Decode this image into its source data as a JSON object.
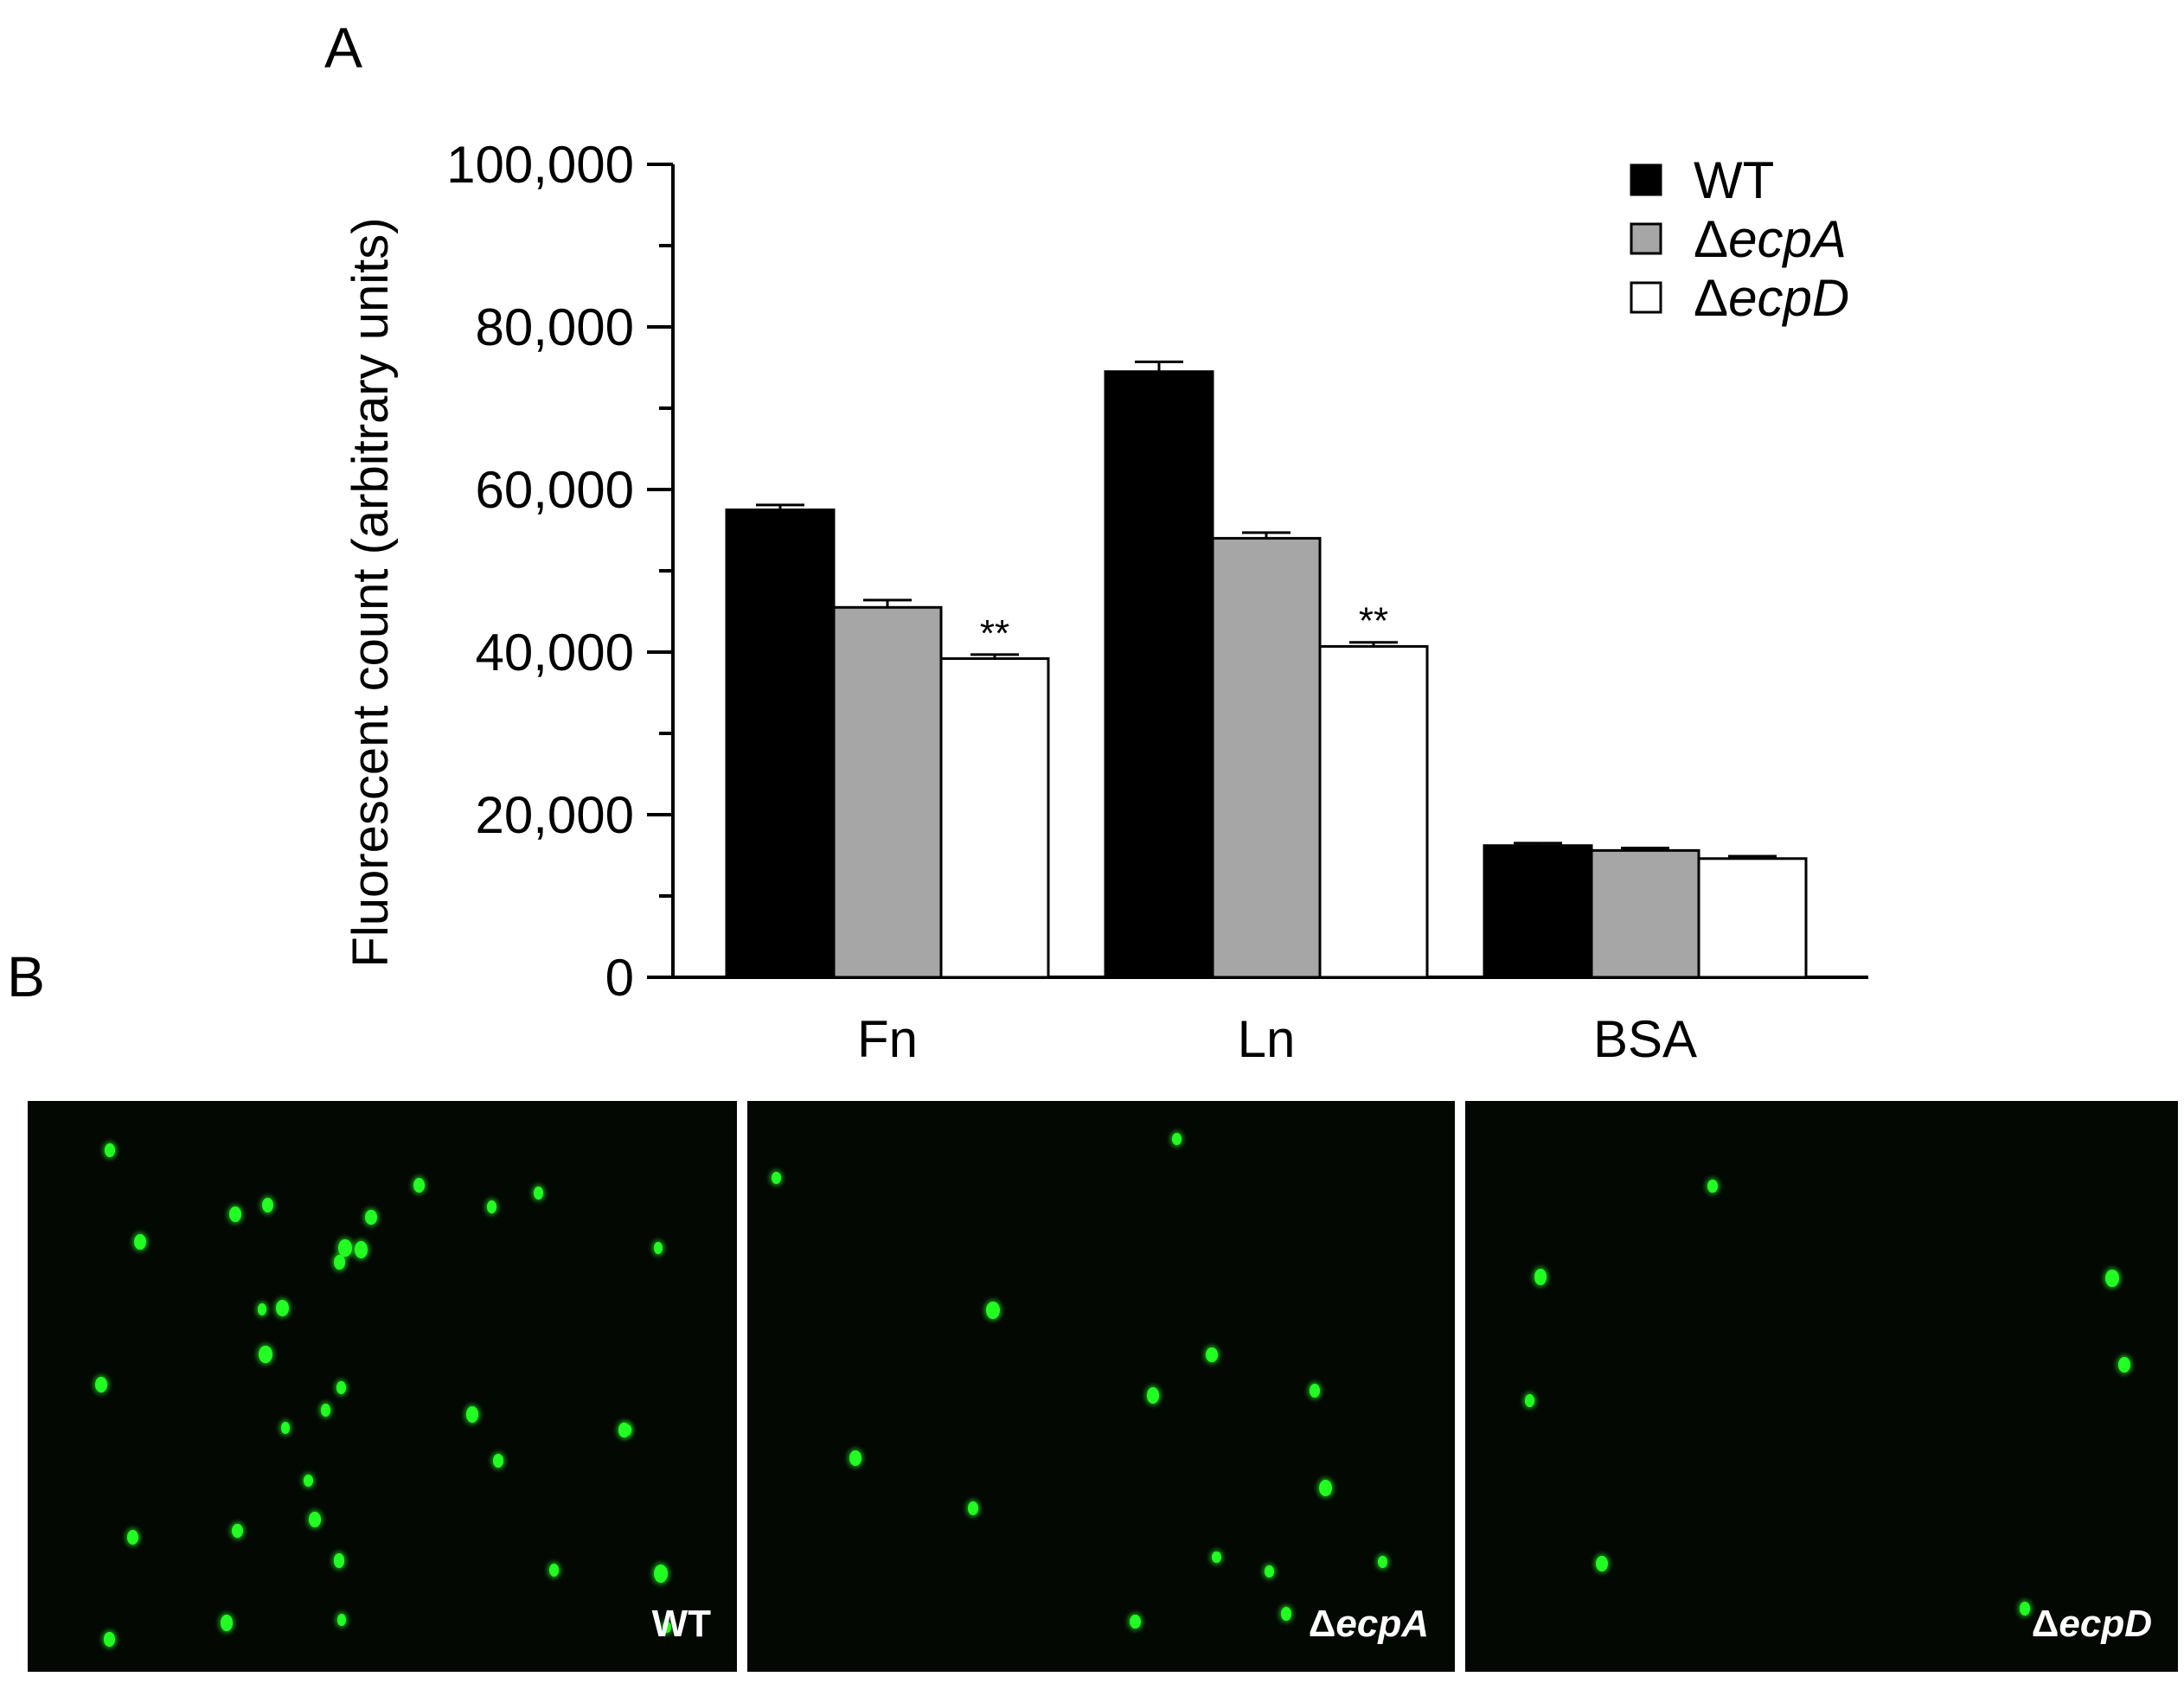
{
  "panel_labels": {
    "a": "A",
    "b": "B"
  },
  "chart_data": {
    "type": "bar",
    "ylabel": "Fluorescent count (arbitrary units)",
    "ylim": [
      0,
      100000
    ],
    "yticks": [
      {
        "value": 0,
        "label": "0"
      },
      {
        "value": 20000,
        "label": "20,000"
      },
      {
        "value": 40000,
        "label": "40,000"
      },
      {
        "value": 60000,
        "label": "60,000"
      },
      {
        "value": 80000,
        "label": "80,000"
      },
      {
        "value": 100000,
        "label": "100,000"
      }
    ],
    "minor_step": 10000,
    "categories": [
      "Fn",
      "Ln",
      "BSA"
    ],
    "series": [
      {
        "name": "WT",
        "fill": "#000000",
        "values": [
          57500,
          74500,
          16200
        ],
        "errors": [
          600,
          1200,
          300
        ],
        "annotations": [
          "",
          "",
          ""
        ]
      },
      {
        "name": "ecpA",
        "fill": "#a6a6a6",
        "values": [
          45500,
          54000,
          15600
        ],
        "errors": [
          900,
          700,
          300
        ],
        "annotations": [
          "",
          "",
          ""
        ]
      },
      {
        "name": "ecpD",
        "fill": "#ffffff",
        "values": [
          39200,
          40700,
          14600
        ],
        "errors": [
          500,
          500,
          300
        ],
        "annotations": [
          "**",
          "**",
          ""
        ]
      }
    ],
    "legend": {
      "placement": "top-right",
      "delta": "Δ",
      "items": [
        {
          "prefix": "",
          "name": "WT",
          "italic": false
        },
        {
          "prefix": "Δ",
          "name": "ecpA",
          "italic": true
        },
        {
          "prefix": "Δ",
          "name": "ecpD",
          "italic": true
        }
      ]
    }
  },
  "micrographs": [
    {
      "prefix": "",
      "name": "WT",
      "italic": false
    },
    {
      "prefix": "Δ",
      "name": "ecpA",
      "italic": true
    },
    {
      "prefix": "Δ",
      "name": "ecpD",
      "italic": true
    }
  ]
}
